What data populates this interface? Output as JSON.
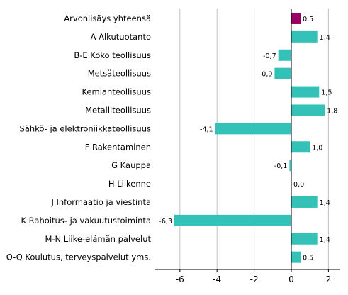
{
  "chart_data": {
    "type": "bar",
    "orientation": "horizontal",
    "title": "",
    "xlabel": "",
    "ylabel": "",
    "xlim": [
      -7,
      2.7
    ],
    "xticks": [
      -6,
      -4,
      -2,
      0,
      2
    ],
    "xtick_labels": [
      "-6",
      "-4",
      "-2",
      "0",
      "2"
    ],
    "grid": "vertical",
    "legend": "none",
    "categories": [
      "Arvonlisäys yhteensä",
      "A Alkutuotanto",
      "B-E Koko teollisuus",
      "Metsäteollisuus",
      "Kemianteollisuus",
      "Metalliteollisuus",
      "Sähkö- ja elektroniikkateollisuus",
      "F Rakentaminen",
      "G Kauppa",
      "H Liikenne",
      "J Informaatio ja viestintä",
      "K Rahoitus- ja vakuutustoiminta",
      "M-N Liike-elämän palvelut",
      "O-Q Koulutus, terveyspalvelut yms."
    ],
    "values": [
      0.5,
      1.4,
      -0.7,
      -0.9,
      1.5,
      1.8,
      -4.1,
      1.0,
      -0.1,
      0.0,
      1.4,
      -6.3,
      1.4,
      0.5
    ],
    "value_labels": [
      "0,5",
      "1,4",
      "-0,7",
      "-0,9",
      "1,5",
      "1,8",
      "-4,1",
      "1,0",
      "-0,1",
      "0,0",
      "1,4",
      "-6,3",
      "1,4",
      "0,5"
    ],
    "colors": [
      "#990066",
      "#33c1b8",
      "#33c1b8",
      "#33c1b8",
      "#33c1b8",
      "#33c1b8",
      "#33c1b8",
      "#33c1b8",
      "#33c1b8",
      "#33c1b8",
      "#33c1b8",
      "#33c1b8",
      "#33c1b8",
      "#33c1b8"
    ],
    "gridline_color": "#c0c0c0",
    "axis_color": "#000000"
  }
}
